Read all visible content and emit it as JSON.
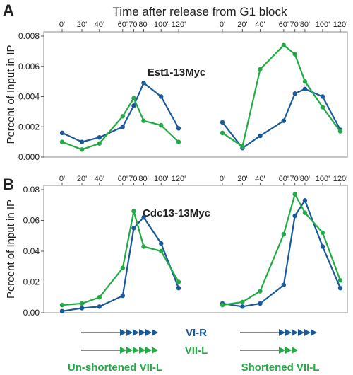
{
  "header": {
    "title": "Time after release from G1 block"
  },
  "colors": {
    "blue": "#1a5a9a",
    "green": "#22aa44",
    "gray": "#888888",
    "frame": "#a8a8a8"
  },
  "chart_data": [
    {
      "type": "line",
      "panel_label": "A",
      "title": "Est1-13Myc",
      "ylabel": "Percent of Input in IP",
      "ylim": [
        0,
        0.008
      ],
      "yticks": [
        "0.000",
        "0.002",
        "0.004",
        "0.006",
        "0.008"
      ],
      "xticks": [
        "0'",
        "20'",
        "40'",
        "60'",
        "70'",
        "80'",
        "100'",
        "120'"
      ],
      "tick_minutes": [
        0,
        20,
        40,
        60,
        70,
        80,
        100,
        120
      ],
      "grid": false,
      "subpanels": [
        {
          "name": "Un-shortened VII-L",
          "series": [
            {
              "name": "VI-R",
              "color": "blue",
              "x": [
                0,
                20,
                40,
                60,
                70,
                80,
                100,
                120
              ],
              "y": [
                0.0016,
                0.001,
                0.0013,
                0.002,
                0.0034,
                0.0049,
                0.004,
                0.0019
              ]
            },
            {
              "name": "VII-L",
              "color": "green",
              "x": [
                0,
                20,
                40,
                60,
                70,
                80,
                100,
                120
              ],
              "y": [
                0.001,
                0.0005,
                0.0009,
                0.0027,
                0.0039,
                0.0024,
                0.0021,
                0.001
              ]
            }
          ]
        },
        {
          "name": "Shortened VII-L",
          "series": [
            {
              "name": "VI-R",
              "color": "blue",
              "x": [
                0,
                20,
                40,
                60,
                70,
                80,
                100,
                120
              ],
              "y": [
                0.0023,
                0.0006,
                0.0014,
                0.0024,
                0.0042,
                0.0045,
                0.004,
                0.0018
              ]
            },
            {
              "name": "VII-L",
              "color": "green",
              "x": [
                0,
                20,
                40,
                60,
                70,
                80,
                100,
                120
              ],
              "y": [
                0.0016,
                0.0007,
                0.0058,
                0.0074,
                0.0068,
                0.005,
                0.0033,
                0.0017
              ]
            }
          ]
        }
      ]
    },
    {
      "type": "line",
      "panel_label": "B",
      "title": "Cdc13-13Myc",
      "ylabel": "Percent of Input in IP",
      "ylim": [
        0,
        0.08
      ],
      "yticks": [
        "0.00",
        "0.02",
        "0.04",
        "0.06",
        "0.08"
      ],
      "xticks": [
        "0'",
        "20'",
        "40'",
        "60'",
        "70'",
        "80'",
        "100'",
        "120'"
      ],
      "tick_minutes": [
        0,
        20,
        40,
        60,
        70,
        80,
        100,
        120
      ],
      "grid": false,
      "subpanels": [
        {
          "name": "Un-shortened VII-L",
          "series": [
            {
              "name": "VI-R",
              "color": "blue",
              "x": [
                0,
                20,
                40,
                60,
                70,
                80,
                100,
                120
              ],
              "y": [
                0.001,
                0.003,
                0.004,
                0.011,
                0.055,
                0.062,
                0.045,
                0.016
              ]
            },
            {
              "name": "VII-L",
              "color": "green",
              "x": [
                0,
                20,
                40,
                60,
                70,
                80,
                100,
                120
              ],
              "y": [
                0.005,
                0.006,
                0.01,
                0.029,
                0.066,
                0.043,
                0.04,
                0.02
              ]
            }
          ]
        },
        {
          "name": "Shortened VII-L",
          "series": [
            {
              "name": "VI-R",
              "color": "blue",
              "x": [
                0,
                20,
                40,
                60,
                70,
                80,
                100,
                120
              ],
              "y": [
                0.006,
                0.004,
                0.006,
                0.018,
                0.063,
                0.073,
                0.043,
                0.016
              ]
            },
            {
              "name": "VII-L",
              "color": "green",
              "x": [
                0,
                20,
                40,
                60,
                70,
                80,
                100,
                120
              ],
              "y": [
                0.005,
                0.007,
                0.014,
                0.051,
                0.077,
                0.065,
                0.052,
                0.021
              ]
            }
          ]
        }
      ]
    }
  ],
  "legend": {
    "entries": [
      {
        "label": "VI-R",
        "color": "blue",
        "type": "VI-R"
      },
      {
        "label": "VII-L",
        "color": "green",
        "type": "VII-L"
      }
    ],
    "groups": [
      {
        "label": "Un-shortened VII-L",
        "color": "green",
        "arrows": [
          6,
          6
        ]
      },
      {
        "label": "Shortened VII-L",
        "color": "green",
        "arrows": [
          6,
          3
        ]
      }
    ]
  }
}
